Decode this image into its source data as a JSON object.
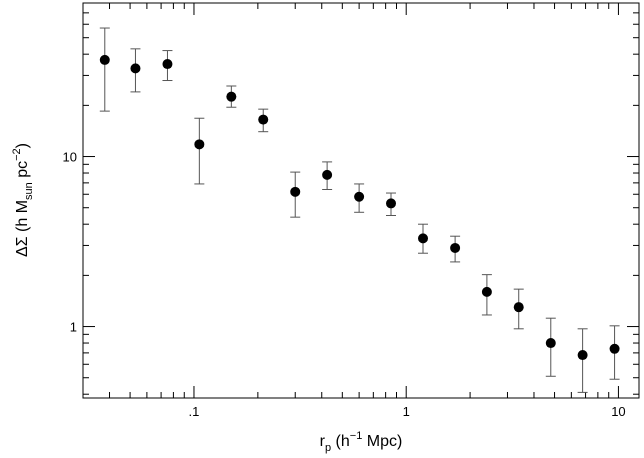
{
  "chart_data": {
    "type": "scatter",
    "title": "",
    "x_scale": "log",
    "y_scale": "log",
    "xlim": [
      0.03,
      12.5
    ],
    "ylim": [
      0.38,
      80
    ],
    "x_ticks": [
      0.1,
      1,
      10
    ],
    "x_tick_labels": [
      ".1",
      "1",
      "10"
    ],
    "y_ticks": [
      1,
      10
    ],
    "y_tick_labels": [
      "1",
      "10"
    ],
    "xlabel": {
      "main": "r",
      "sub": "p",
      "open": " (h",
      "sup": "−1",
      "rest": " Mpc)"
    },
    "ylabel": {
      "main": "ΔΣ (h M",
      "sub": "sun",
      "mid": " pc",
      "sup": "−2",
      "close": ")"
    },
    "grid": false,
    "legend": "none",
    "marker_color": "#000000",
    "errorbar_color": "#555555",
    "points": [
      {
        "x": 0.038,
        "y": 37.0,
        "ylo": 18.5,
        "yhi": 57.0
      },
      {
        "x": 0.053,
        "y": 33.0,
        "ylo": 24.0,
        "yhi": 43.0
      },
      {
        "x": 0.075,
        "y": 35.0,
        "ylo": 28.0,
        "yhi": 42.0
      },
      {
        "x": 0.106,
        "y": 11.8,
        "ylo": 6.9,
        "yhi": 16.8
      },
      {
        "x": 0.15,
        "y": 22.5,
        "ylo": 19.5,
        "yhi": 26.0
      },
      {
        "x": 0.212,
        "y": 16.5,
        "ylo": 14.0,
        "yhi": 19.0
      },
      {
        "x": 0.3,
        "y": 6.2,
        "ylo": 4.4,
        "yhi": 8.1
      },
      {
        "x": 0.424,
        "y": 7.8,
        "ylo": 6.4,
        "yhi": 9.3
      },
      {
        "x": 0.6,
        "y": 5.8,
        "ylo": 4.7,
        "yhi": 6.9
      },
      {
        "x": 0.848,
        "y": 5.3,
        "ylo": 4.5,
        "yhi": 6.1
      },
      {
        "x": 1.2,
        "y": 3.3,
        "ylo": 2.7,
        "yhi": 4.0
      },
      {
        "x": 1.7,
        "y": 2.9,
        "ylo": 2.4,
        "yhi": 3.4
      },
      {
        "x": 2.4,
        "y": 1.6,
        "ylo": 1.17,
        "yhi": 2.02
      },
      {
        "x": 3.39,
        "y": 1.3,
        "ylo": 0.97,
        "yhi": 1.66
      },
      {
        "x": 4.8,
        "y": 0.8,
        "ylo": 0.51,
        "yhi": 1.12
      },
      {
        "x": 6.78,
        "y": 0.68,
        "ylo": 0.41,
        "yhi": 0.97
      },
      {
        "x": 9.59,
        "y": 0.74,
        "ylo": 0.49,
        "yhi": 1.01
      }
    ]
  }
}
